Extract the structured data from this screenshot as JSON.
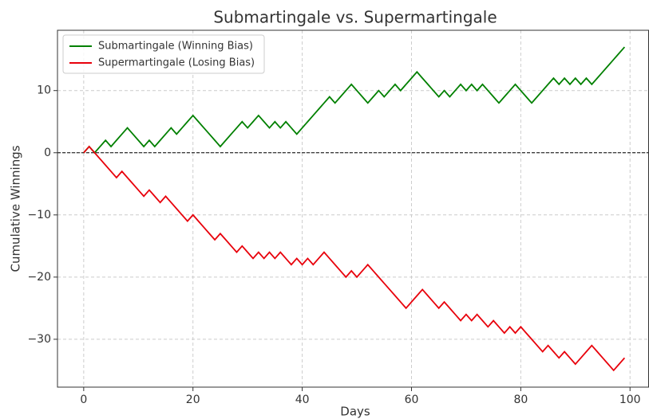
{
  "chart_data": {
    "type": "line",
    "title": "Submartingale vs. Supermartingale",
    "xlabel": "Days",
    "ylabel": "Cumulative Winnings",
    "x": [
      0,
      1,
      2,
      3,
      4,
      5,
      6,
      7,
      8,
      9,
      10,
      11,
      12,
      13,
      14,
      15,
      16,
      17,
      18,
      19,
      20,
      21,
      22,
      23,
      24,
      25,
      26,
      27,
      28,
      29,
      30,
      31,
      32,
      33,
      34,
      35,
      36,
      37,
      38,
      39,
      40,
      41,
      42,
      43,
      44,
      45,
      46,
      47,
      48,
      49,
      50,
      51,
      52,
      53,
      54,
      55,
      56,
      57,
      58,
      59,
      60,
      61,
      62,
      63,
      64,
      65,
      66,
      67,
      68,
      69,
      70,
      71,
      72,
      73,
      74,
      75,
      76,
      77,
      78,
      79,
      80,
      81,
      82,
      83,
      84,
      85,
      86,
      87,
      88,
      89,
      90,
      91,
      92,
      93,
      94,
      95,
      96,
      97,
      98,
      99
    ],
    "series": [
      {
        "name": "Submartingale (Winning Bias)",
        "color": "#008000",
        "values": [
          0,
          1,
          0,
          1,
          2,
          1,
          2,
          3,
          4,
          3,
          2,
          1,
          2,
          1,
          2,
          3,
          4,
          3,
          4,
          5,
          6,
          5,
          4,
          3,
          2,
          1,
          2,
          3,
          4,
          5,
          4,
          5,
          6,
          5,
          4,
          5,
          4,
          5,
          4,
          3,
          4,
          5,
          6,
          7,
          8,
          9,
          8,
          9,
          10,
          11,
          10,
          9,
          8,
          9,
          10,
          9,
          10,
          11,
          10,
          11,
          12,
          13,
          12,
          11,
          10,
          9,
          10,
          9,
          10,
          11,
          10,
          11,
          10,
          11,
          10,
          9,
          8,
          9,
          10,
          11,
          10,
          9,
          8,
          9,
          10,
          11,
          12,
          11,
          12,
          11,
          12,
          11,
          12,
          11,
          12,
          13,
          14,
          15,
          16,
          17
        ]
      },
      {
        "name": "Supermartingale (Losing Bias)",
        "color": "#e8000b",
        "values": [
          0,
          1,
          0,
          -1,
          -2,
          -3,
          -4,
          -3,
          -4,
          -5,
          -6,
          -7,
          -6,
          -7,
          -8,
          -7,
          -8,
          -9,
          -10,
          -11,
          -10,
          -11,
          -12,
          -13,
          -14,
          -13,
          -14,
          -15,
          -16,
          -15,
          -16,
          -17,
          -16,
          -17,
          -16,
          -17,
          -16,
          -17,
          -18,
          -17,
          -18,
          -17,
          -18,
          -17,
          -16,
          -17,
          -18,
          -19,
          -20,
          -19,
          -20,
          -19,
          -18,
          -19,
          -20,
          -21,
          -22,
          -23,
          -24,
          -25,
          -24,
          -23,
          -22,
          -23,
          -24,
          -25,
          -24,
          -25,
          -26,
          -27,
          -26,
          -27,
          -26,
          -27,
          -28,
          -27,
          -28,
          -29,
          -28,
          -29,
          -28,
          -29,
          -30,
          -31,
          -32,
          -31,
          -32,
          -33,
          -32,
          -33,
          -34,
          -33,
          -32,
          -31,
          -32,
          -33,
          -34,
          -35,
          -34,
          -33
        ]
      }
    ],
    "xlim": [
      -4.8,
      103.4
    ],
    "ylim": [
      -37.7,
      19.7
    ],
    "xticks": [
      0,
      20,
      40,
      60,
      80,
      100
    ],
    "yticks": [
      {
        "value": -30,
        "label": "−30"
      },
      {
        "value": -20,
        "label": "−20"
      },
      {
        "value": -10,
        "label": "−10"
      },
      0,
      10
    ],
    "hlines": [
      0
    ],
    "grid": true,
    "legend": "upper left"
  }
}
